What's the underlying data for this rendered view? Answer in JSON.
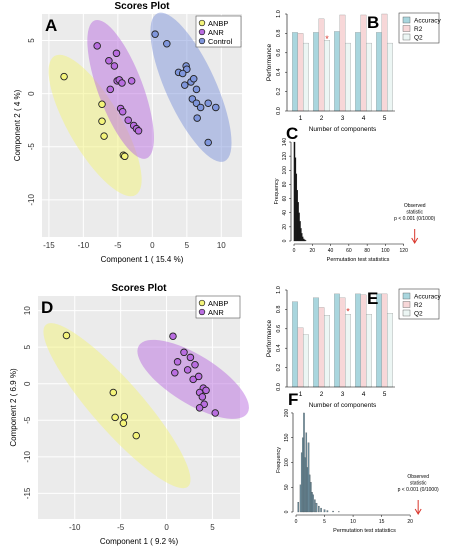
{
  "panels": {
    "A": {
      "letter": "A",
      "title": "Scores Plot",
      "xlabel": "Component 1 ( 15.4 %)",
      "ylabel": "Component 2 ( 4 %)"
    },
    "B": {
      "letter": "B",
      "ylabel": "Performance",
      "xlabel": "Number of components"
    },
    "C": {
      "letter": "C",
      "ylabel": "Frequency",
      "xlabel": "Permutation test statistics",
      "annotation": [
        "Observed",
        "statistic",
        "p < 0.001 (0/1000)"
      ]
    },
    "D": {
      "letter": "D",
      "title": "Scores Plot",
      "xlabel": "Component 1 ( 9.2 %)",
      "ylabel": "Component 2 ( 6.9 %)"
    },
    "E": {
      "letter": "E",
      "ylabel": "Performance",
      "xlabel": "Number of components"
    },
    "F": {
      "letter": "F",
      "ylabel": "Frequency",
      "xlabel": "Permutation test statistics",
      "annotation": [
        "Observed",
        "statistic",
        "p < 0.001 (0/1000)"
      ]
    }
  },
  "colors": {
    "ANBP": "#f4f47a",
    "ANR": "#b96de0",
    "Control": "#7f96dc",
    "Accuracy": "#a9d6de",
    "R2": "#f7d7d8",
    "Q2": "#ecf6f4",
    "C_hist": "#111111",
    "F_hist": "#6a8c9c",
    "arrow": "#d9342a"
  },
  "chart_data": [
    {
      "panel": "A",
      "type": "scatter",
      "title": "Scores Plot",
      "xlabel": "Component 1 ( 15.4 %)",
      "ylabel": "Component 2 ( 4 %)",
      "xlim": [
        -16,
        13
      ],
      "ylim": [
        -13.5,
        7.5
      ],
      "xticks": [
        -15,
        -10,
        -5,
        0,
        5,
        10
      ],
      "yticks": [
        5,
        0,
        -5,
        -10
      ],
      "legend": "top-right",
      "series": [
        {
          "name": "ANBP",
          "points": [
            [
              -12.8,
              1.6
            ],
            [
              -7.3,
              -1.0
            ],
            [
              -7.3,
              -2.6
            ],
            [
              -7.0,
              -4.0
            ],
            [
              -4.2,
              -5.8
            ],
            [
              -4.0,
              -5.9
            ]
          ]
        },
        {
          "name": "ANR",
          "points": [
            [
              -8.0,
              4.5
            ],
            [
              -6.3,
              3.1
            ],
            [
              -5.2,
              3.8
            ],
            [
              -5.5,
              2.6
            ],
            [
              -5.1,
              1.2
            ],
            [
              -4.8,
              1.3
            ],
            [
              -4.4,
              1.0
            ],
            [
              -6.1,
              0.4
            ],
            [
              -3.0,
              1.2
            ],
            [
              -4.6,
              -1.4
            ],
            [
              -4.3,
              -1.7
            ],
            [
              -3.5,
              -2.5
            ],
            [
              -2.7,
              -3.0
            ],
            [
              -2.3,
              -3.3
            ],
            [
              -2.0,
              -3.5
            ]
          ]
        },
        {
          "name": "Control",
          "points": [
            [
              0.4,
              5.6
            ],
            [
              2.1,
              4.7
            ],
            [
              3.8,
              2.0
            ],
            [
              4.9,
              2.6
            ],
            [
              5.0,
              2.3
            ],
            [
              4.4,
              1.9
            ],
            [
              5.6,
              1.1
            ],
            [
              4.7,
              0.8
            ],
            [
              6.4,
              0.4
            ],
            [
              6.0,
              1.4
            ],
            [
              5.8,
              -0.5
            ],
            [
              6.4,
              -0.9
            ],
            [
              7.0,
              -1.3
            ],
            [
              8.1,
              -0.9
            ],
            [
              6.5,
              -2.3
            ],
            [
              9.2,
              -1.3
            ],
            [
              8.1,
              -4.6
            ]
          ]
        }
      ],
      "ellipses": [
        {
          "name": "ANBP",
          "center": [
            -8.3,
            -3.0
          ],
          "rx": 8.8,
          "ry": 3.0,
          "angle_deg": -48
        },
        {
          "name": "ANR",
          "center": [
            -4.6,
            0.4
          ],
          "rx": 7.5,
          "ry": 2.8,
          "angle_deg": -60
        },
        {
          "name": "Control",
          "center": [
            5.6,
            0.6
          ],
          "rx": 8.5,
          "ry": 3.0,
          "angle_deg": -55
        }
      ]
    },
    {
      "panel": "B",
      "type": "bar",
      "xlabel": "Number of components",
      "ylabel": "Performance",
      "categories": [
        "1",
        "2",
        "3",
        "4",
        "5"
      ],
      "ylim": [
        0,
        1.0
      ],
      "yticks": [
        0.0,
        0.2,
        0.4,
        0.6,
        0.8,
        1.0
      ],
      "legend": "top-right",
      "series": [
        {
          "name": "Accuracy",
          "values": [
            0.81,
            0.81,
            0.82,
            0.81,
            0.81
          ]
        },
        {
          "name": "R2",
          "values": [
            0.8,
            0.95,
            0.99,
            0.99,
            1.0
          ]
        },
        {
          "name": "Q2",
          "values": [
            0.7,
            0.73,
            0.7,
            0.7,
            0.7
          ]
        }
      ],
      "marker": {
        "category": "2",
        "value": 0.74
      }
    },
    {
      "panel": "C",
      "type": "bar",
      "xlabel": "Permutation test statistics",
      "ylabel": "Frequency",
      "xlim": [
        0,
        140
      ],
      "xticks": [
        0,
        20,
        40,
        60,
        80,
        100,
        120
      ],
      "ylim": [
        0,
        140
      ],
      "yticks": [
        0,
        20,
        40,
        60,
        80,
        100,
        120,
        140
      ],
      "x": [
        0.5,
        1.5,
        2.5,
        3.5,
        4.5,
        5.5,
        6.5,
        7.5,
        8.5,
        9.5,
        10.5,
        11.5,
        12.5
      ],
      "values": [
        140,
        118,
        95,
        72,
        55,
        40,
        28,
        18,
        11,
        6,
        3,
        2,
        1
      ],
      "observed": 132
    },
    {
      "panel": "D",
      "type": "scatter",
      "title": "Scores Plot",
      "xlabel": "Component 1 ( 9.2 %)",
      "ylabel": "Component 2 ( 6.9 %)",
      "xlim": [
        -14,
        8
      ],
      "ylim": [
        -18.5,
        12
      ],
      "xticks": [
        -10,
        -5,
        0,
        5
      ],
      "yticks": [
        10,
        5,
        0,
        -5,
        -10,
        -15
      ],
      "legend": "top-right",
      "series": [
        {
          "name": "ANBP",
          "points": [
            [
              -10.9,
              6.6
            ],
            [
              -5.8,
              -1.2
            ],
            [
              -5.6,
              -4.6
            ],
            [
              -4.6,
              -4.5
            ],
            [
              -4.7,
              -5.4
            ],
            [
              -3.3,
              -7.1
            ]
          ]
        },
        {
          "name": "ANR",
          "points": [
            [
              0.7,
              6.5
            ],
            [
              1.9,
              4.3
            ],
            [
              2.6,
              3.6
            ],
            [
              1.2,
              3.0
            ],
            [
              2.3,
              1.9
            ],
            [
              3.1,
              2.6
            ],
            [
              0.9,
              1.5
            ],
            [
              2.9,
              0.6
            ],
            [
              3.5,
              1.0
            ],
            [
              4.0,
              -0.6
            ],
            [
              4.3,
              -0.9
            ],
            [
              3.6,
              -1.2
            ],
            [
              3.9,
              -1.8
            ],
            [
              4.1,
              -2.8
            ],
            [
              3.6,
              -3.3
            ],
            [
              5.3,
              -4.0
            ]
          ]
        }
      ],
      "ellipses": [
        {
          "name": "ANBP",
          "center": [
            -5.4,
            -3.0
          ],
          "rx": 13.5,
          "ry": 2.9,
          "angle_deg": -55
        },
        {
          "name": "ANR",
          "center": [
            2.9,
            0.6
          ],
          "rx": 7.5,
          "ry": 3.0,
          "angle_deg": -38
        }
      ]
    },
    {
      "panel": "E",
      "type": "bar",
      "xlabel": "Number of components",
      "ylabel": "Performance",
      "categories": [
        "1",
        "2",
        "3",
        "4",
        "5"
      ],
      "ylim": [
        0,
        1.0
      ],
      "yticks": [
        0.0,
        0.2,
        0.4,
        0.6,
        0.8,
        1.0
      ],
      "legend": "top-right",
      "series": [
        {
          "name": "Accuracy",
          "values": [
            0.88,
            0.92,
            0.96,
            0.96,
            0.96
          ]
        },
        {
          "name": "R2",
          "values": [
            0.61,
            0.82,
            0.92,
            0.95,
            0.96
          ]
        },
        {
          "name": "Q2",
          "values": [
            0.54,
            0.74,
            0.75,
            0.75,
            0.76
          ]
        }
      ],
      "marker": {
        "category": "3",
        "value": 0.78
      }
    },
    {
      "panel": "F",
      "type": "bar",
      "xlabel": "Permutation test statistics",
      "ylabel": "Frequency",
      "xlim": [
        0,
        24
      ],
      "xticks": [
        0,
        5,
        10,
        15,
        20
      ],
      "ylim": [
        0,
        210
      ],
      "yticks": [
        0,
        50,
        100,
        150,
        200
      ],
      "x": [
        0.4,
        0.8,
        1.0,
        1.2,
        1.4,
        1.6,
        1.8,
        2.0,
        2.2,
        2.4,
        2.6,
        2.8,
        3.0,
        3.3,
        3.6,
        4.0,
        4.4,
        5.0,
        5.5,
        6.5,
        7.5
      ],
      "values": [
        20,
        55,
        120,
        150,
        200,
        110,
        160,
        90,
        140,
        75,
        60,
        40,
        35,
        25,
        18,
        12,
        8,
        5,
        3,
        2,
        1
      ],
      "observed": 21.4
    }
  ]
}
